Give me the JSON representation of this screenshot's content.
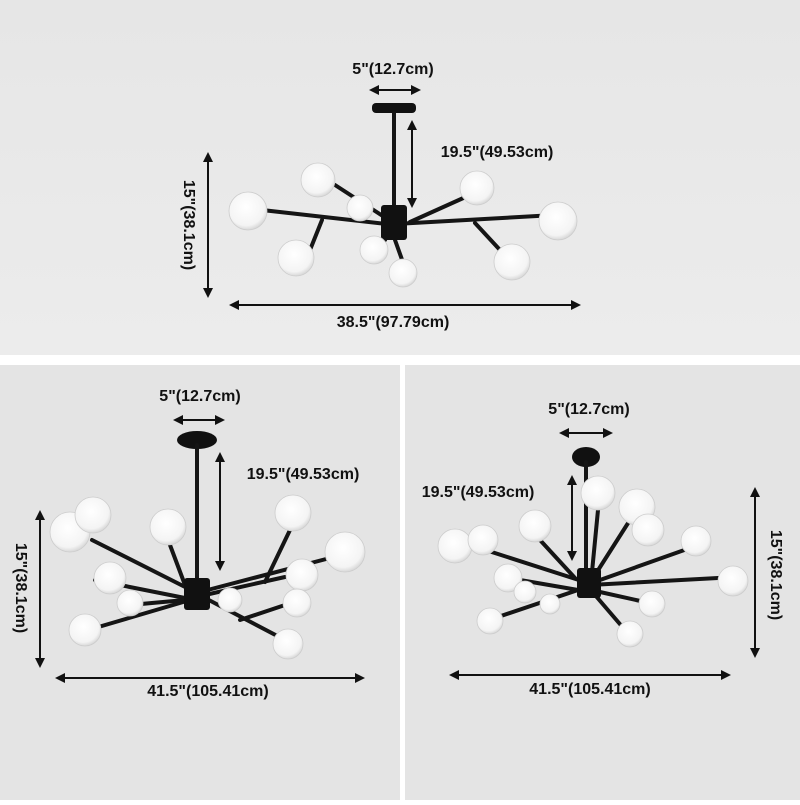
{
  "panels": [
    {
      "canopy_width": "5\"(12.7cm)",
      "drop": "19.5\"(49.53cm)",
      "height": "15\"(38.1cm)",
      "width": "38.5\"(97.79cm)"
    },
    {
      "canopy_width": "5\"(12.7cm)",
      "drop": "19.5\"(49.53cm)",
      "height": "15\"(38.1cm)",
      "width": "41.5\"(105.41cm)"
    },
    {
      "canopy_width": "5\"(12.7cm)",
      "drop": "19.5\"(49.53cm)",
      "height": "15\"(38.1cm)",
      "width": "41.5\"(105.41cm)"
    }
  ]
}
